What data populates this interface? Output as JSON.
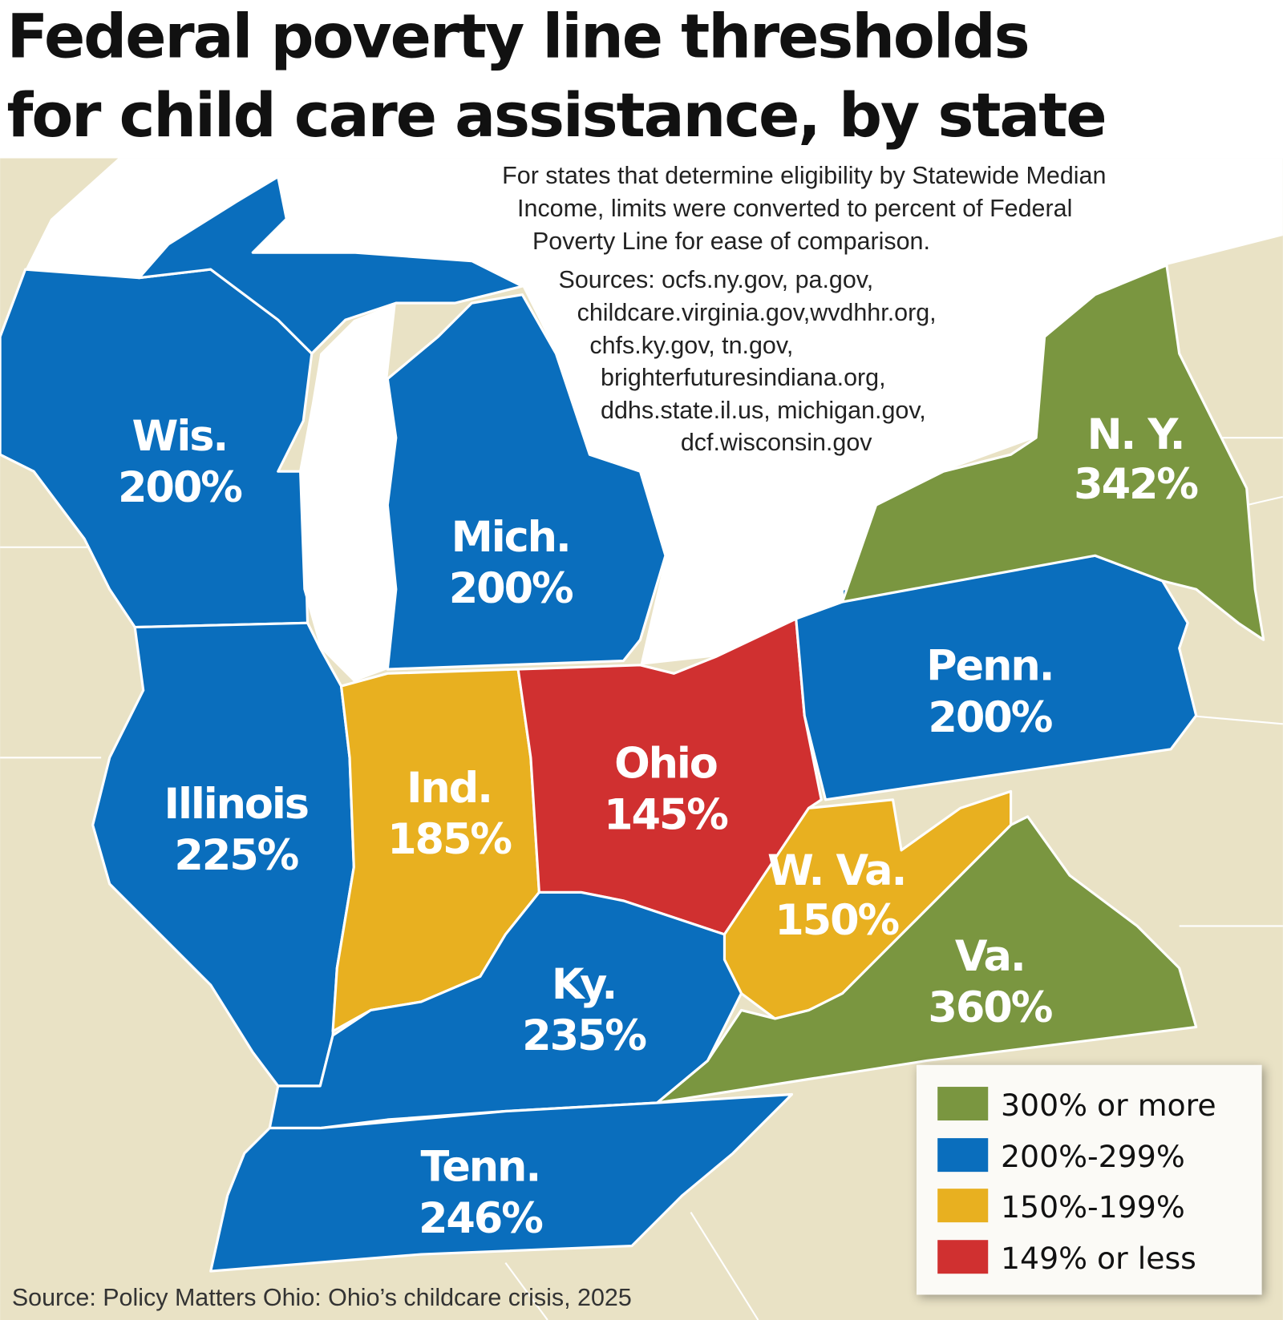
{
  "title": [
    "Federal poverty line thresholds",
    "for child care assistance, by state"
  ],
  "note": [
    "For states that determine eligibility by Statewide Median",
    "Income, limits were converted to percent of Federal",
    "Poverty Line for ease of comparison."
  ],
  "sources": [
    "Sources: ocfs.ny.gov, pa.gov,",
    "childcare.virginia.gov,wvdhhr.org,",
    "chfs.ky.gov, tn.gov,",
    "brighterfuturesindiana.org,",
    "ddhs.state.il.us, michigan.gov,",
    "dcf.wisconsin.gov"
  ],
  "colors": {
    "300_plus": "#7a9640",
    "200_299": "#0a6ebd",
    "150_199": "#e8b020",
    "149_less": "#d03030",
    "land": "#e9e2c5",
    "water": "#ffffff"
  },
  "states": [
    {
      "name": "Wis.",
      "value": "200%",
      "tier": "200_299"
    },
    {
      "name": "Mich.",
      "value": "200%",
      "tier": "200_299"
    },
    {
      "name": "Illinois",
      "value": "225%",
      "tier": "200_299"
    },
    {
      "name": "Ind.",
      "value": "185%",
      "tier": "150_199"
    },
    {
      "name": "Ohio",
      "value": "145%",
      "tier": "149_less"
    },
    {
      "name": "Penn.",
      "value": "200%",
      "tier": "200_299"
    },
    {
      "name": "N. Y.",
      "value": "342%",
      "tier": "300_plus"
    },
    {
      "name": "W. Va.",
      "value": "150%",
      "tier": "150_199"
    },
    {
      "name": "Va.",
      "value": "360%",
      "tier": "300_plus"
    },
    {
      "name": "Ky.",
      "value": "235%",
      "tier": "200_299"
    },
    {
      "name": "Tenn.",
      "value": "246%",
      "tier": "200_299"
    }
  ],
  "legend": [
    {
      "label": "300% or more",
      "color": "#7a9640"
    },
    {
      "label": "200%-299%",
      "color": "#0a6ebd"
    },
    {
      "label": "150%-199%",
      "color": "#e8b020"
    },
    {
      "label": "149% or less",
      "color": "#d03030"
    }
  ],
  "source": "Source: Policy Matters Ohio: Ohio’s childcare crisis, 2025"
}
